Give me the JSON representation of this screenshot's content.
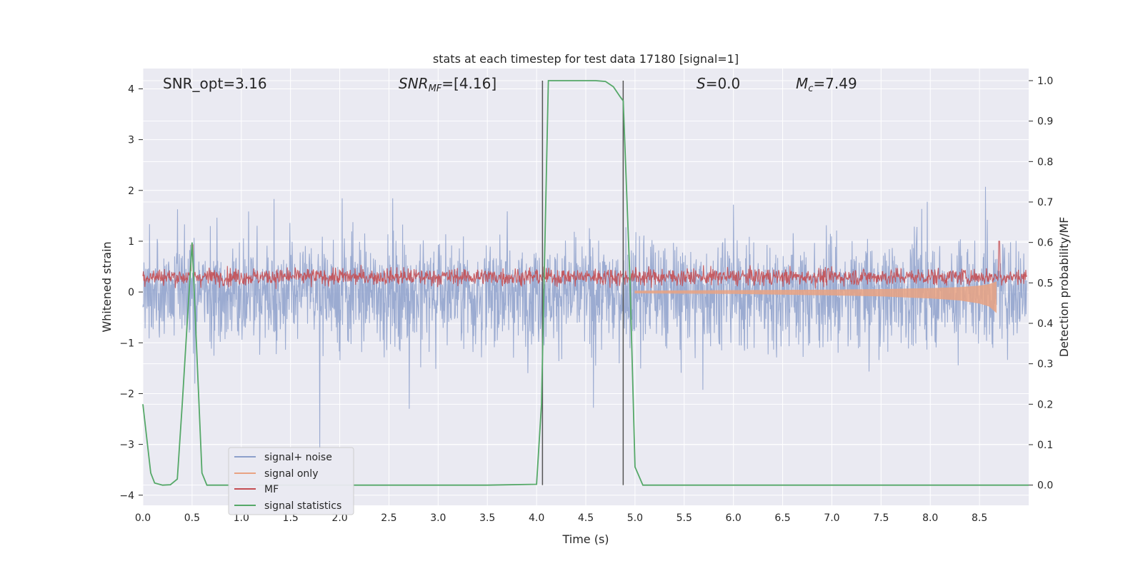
{
  "chart_data": {
    "type": "line",
    "title": "stats at each timestep for test data 17180 [signal=1]",
    "xlabel": "Time (s)",
    "ylabel": "Whitened strain",
    "y2label": "Detection probability/MF",
    "xlim": [
      0.0,
      9.0
    ],
    "ylim": [
      -4.2,
      4.4
    ],
    "y2lim": [
      -0.05,
      1.03
    ],
    "xticks": [
      "0.0",
      "0.5",
      "1.0",
      "1.5",
      "2.0",
      "2.5",
      "3.0",
      "3.5",
      "4.0",
      "4.5",
      "5.0",
      "5.5",
      "6.0",
      "6.5",
      "7.0",
      "7.5",
      "8.0",
      "8.5"
    ],
    "xtick_values": [
      0.0,
      0.5,
      1.0,
      1.5,
      2.0,
      2.5,
      3.0,
      3.5,
      4.0,
      4.5,
      5.0,
      5.5,
      6.0,
      6.5,
      7.0,
      7.5,
      8.0,
      8.5
    ],
    "yticks": [
      "4",
      "3",
      "2",
      "1",
      "0",
      "−1",
      "−2",
      "−3",
      "−4"
    ],
    "ytick_values": [
      4,
      3,
      2,
      1,
      0,
      -1,
      -2,
      -3,
      -4
    ],
    "y2ticks": [
      "1.0",
      "0.9",
      "0.8",
      "0.7",
      "0.6",
      "0.5",
      "0.4",
      "0.3",
      "0.2",
      "0.1",
      "0.0"
    ],
    "y2tick_values": [
      1.0,
      0.9,
      0.8,
      0.7,
      0.6,
      0.5,
      0.4,
      0.3,
      0.2,
      0.1,
      0.0
    ],
    "grid": true,
    "legend_placement": "lower-left",
    "annotations": {
      "snr_opt": "SNR_opt=3.16",
      "snr_mf_main": "SNR",
      "snr_mf_sub": "MF",
      "snr_mf_rest": "=[4.16]",
      "s_main": "S",
      "s_rest": "=0.0",
      "mc_main": "M",
      "mc_sub": "c",
      "mc_rest": "=7.49"
    },
    "vertical_markers": [
      4.06,
      4.88
    ],
    "series": [
      {
        "name": "signal+ noise",
        "color": "#8da0cb",
        "axis": "left",
        "noise_amplitude": 1.0,
        "peak_range": [
          -3.9,
          3.65
        ]
      },
      {
        "name": "signal only",
        "color": "#e9a383",
        "axis": "left",
        "x": [
          5.0,
          6.0,
          7.0,
          7.5,
          8.0,
          8.3,
          8.5,
          8.6,
          8.67
        ],
        "upper": [
          0.02,
          0.03,
          0.04,
          0.05,
          0.07,
          0.09,
          0.12,
          0.15,
          0.2
        ],
        "lower": [
          -0.02,
          -0.03,
          -0.06,
          -0.08,
          -0.12,
          -0.16,
          -0.22,
          -0.28,
          -0.4
        ]
      },
      {
        "name": "MF",
        "color": "#c44e52",
        "axis": "left",
        "baseline": 0.3,
        "range": [
          0.05,
          0.93
        ]
      },
      {
        "name": "signal statistics",
        "color": "#55a868",
        "axis": "right",
        "x": [
          0.0,
          0.08,
          0.12,
          0.2,
          0.28,
          0.35,
          0.4,
          0.5,
          0.6,
          0.65,
          1.0,
          2.0,
          3.0,
          3.5,
          4.0,
          4.05,
          4.12,
          4.4,
          4.6,
          4.7,
          4.78,
          4.85,
          4.88,
          4.95,
          5.0,
          5.08,
          5.5,
          6.0,
          7.0,
          8.0,
          9.0
        ],
        "y": [
          0.2,
          0.03,
          0.005,
          0.0,
          0.001,
          0.015,
          0.2,
          0.6,
          0.03,
          0.0,
          0.0,
          0.0,
          0.0,
          0.0,
          0.002,
          0.2,
          1.0,
          1.0,
          1.0,
          0.998,
          0.985,
          0.96,
          0.95,
          0.5,
          0.045,
          0.0,
          0.0,
          0.0,
          0.0,
          0.0,
          0.0
        ]
      }
    ]
  }
}
